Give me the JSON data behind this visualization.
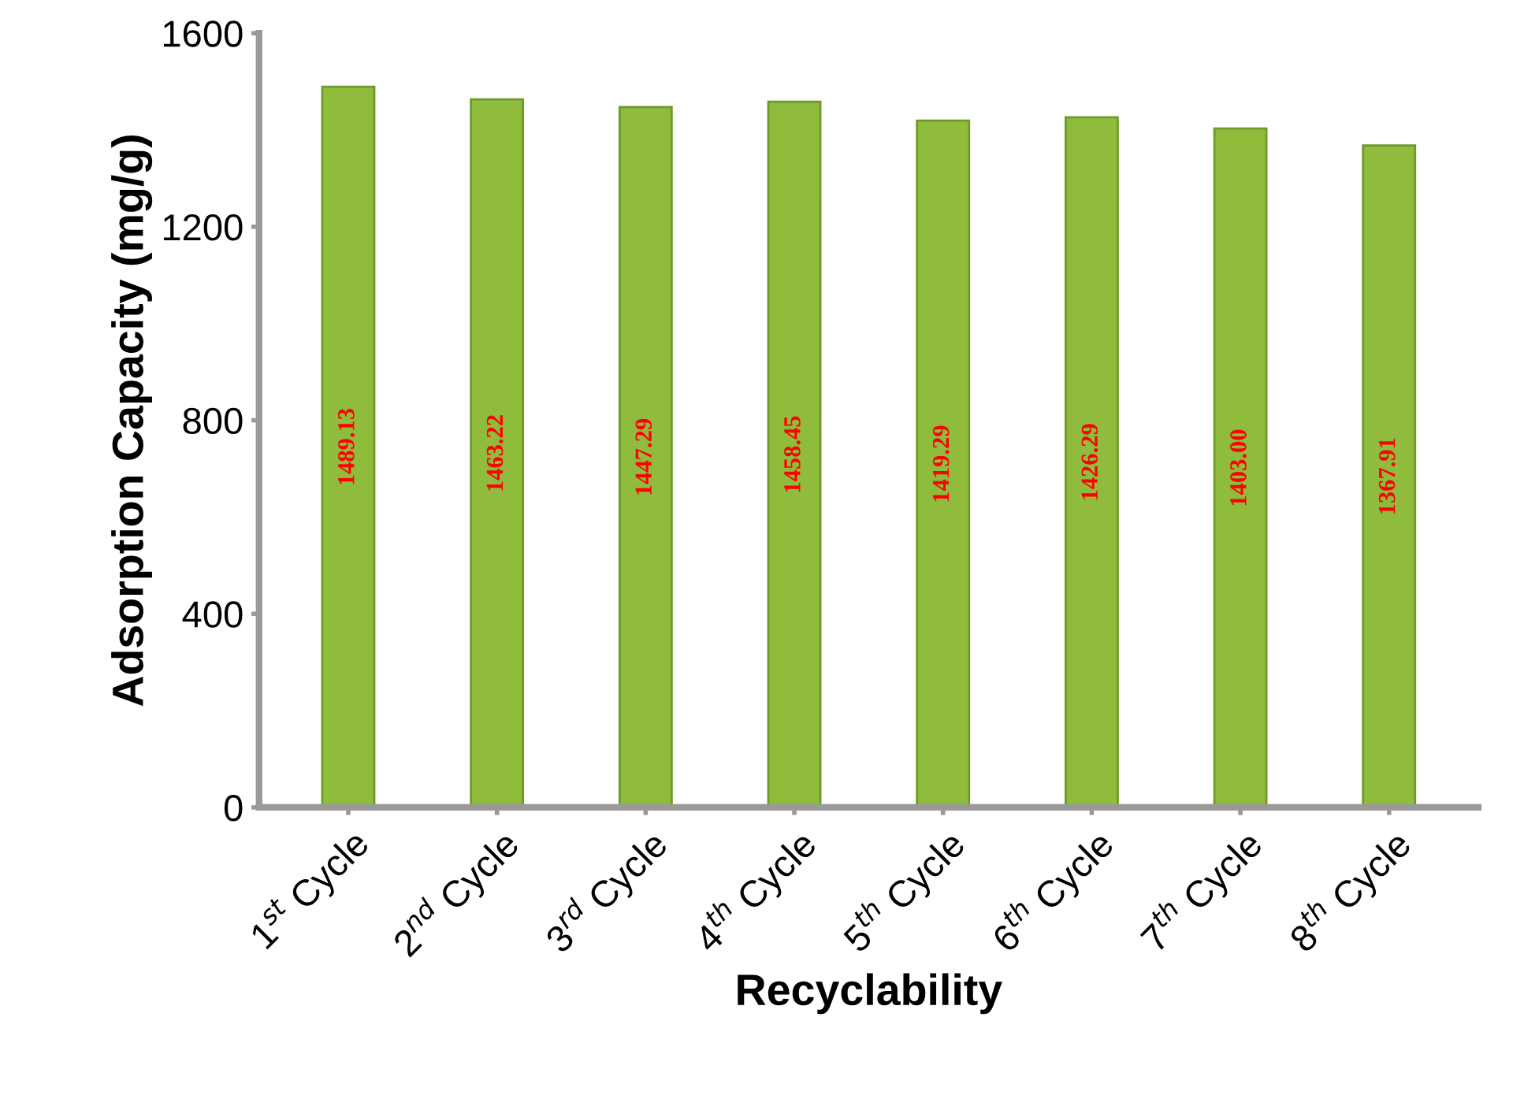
{
  "chart_data": {
    "type": "bar",
    "xlabel": "Recyclability",
    "ylabel": "Adsorption Capacity (mg/g)",
    "categories": [
      "1$^{st}$ Cycle",
      "2$^{nd}$ Cycle",
      "3$^{rd}$ Cycle",
      "4$^{th}$ Cycle",
      "5$^{th}$ Cycle",
      "6$^{th}$ Cycle",
      "7$^{th}$ Cycle",
      "8$^{th}$ Cycle"
    ],
    "values": [
      1489.13,
      1463.22,
      1447.29,
      1458.45,
      1419.29,
      1426.29,
      1403.0,
      1367.91
    ],
    "value_labels": [
      "1489.13",
      "1463.22",
      "1447.29",
      "1458.45",
      "1419.29",
      "1426.29",
      "1403.00",
      "1367.91"
    ],
    "color": "#8fbc3c",
    "ylim": [
      0,
      1600
    ],
    "yticks": [
      0,
      400,
      800,
      1200,
      1600
    ],
    "grid": false,
    "legend": false
  }
}
